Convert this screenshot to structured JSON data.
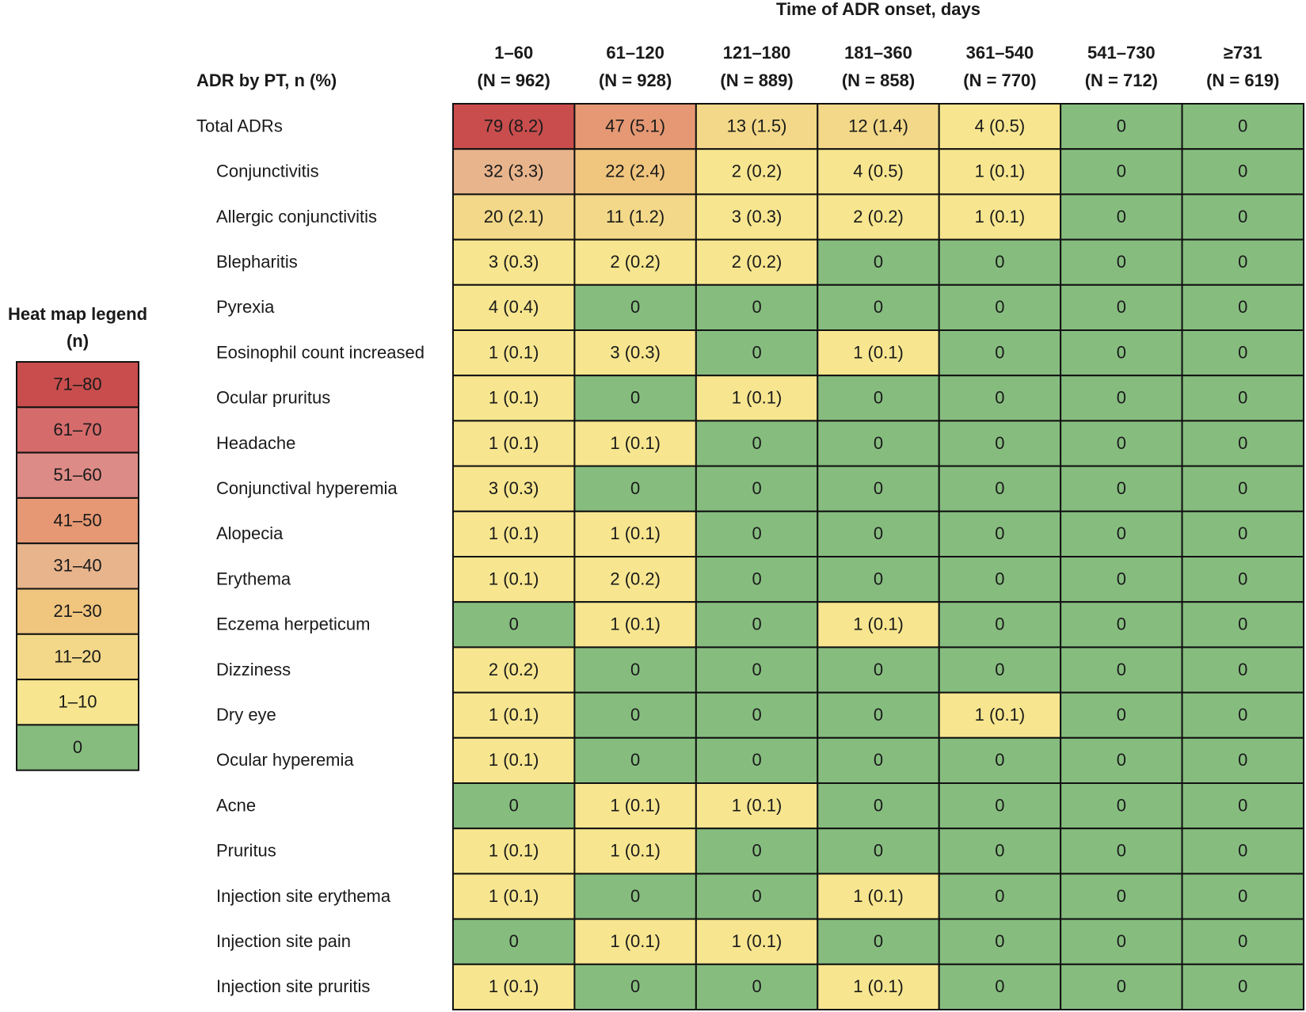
{
  "chart_data": {
    "type": "heatmap",
    "super_header": "Time of ADR onset, days",
    "row_header": "ADR by PT, n (%)",
    "columns": [
      {
        "range": "1–60",
        "n": "(N = 962)"
      },
      {
        "range": "61–120",
        "n": "(N = 928)"
      },
      {
        "range": "121–180",
        "n": "(N = 889)"
      },
      {
        "range": "181–360",
        "n": "(N = 858)"
      },
      {
        "range": "361–540",
        "n": "(N = 770)"
      },
      {
        "range": "541–730",
        "n": "(N = 712)"
      },
      {
        "range": "≥731",
        "n": "(N = 619)"
      }
    ],
    "rows": [
      {
        "label": "Total ADRs",
        "indent": false,
        "counts": [
          79,
          47,
          13,
          12,
          4,
          0,
          0
        ],
        "cells": [
          "79 (8.2)",
          "47 (5.1)",
          "13 (1.5)",
          "12 (1.4)",
          "4 (0.5)",
          "0",
          "0"
        ]
      },
      {
        "label": "Conjunctivitis",
        "indent": true,
        "counts": [
          32,
          22,
          2,
          4,
          1,
          0,
          0
        ],
        "cells": [
          "32 (3.3)",
          "22 (2.4)",
          "2 (0.2)",
          "4 (0.5)",
          "1 (0.1)",
          "0",
          "0"
        ]
      },
      {
        "label": "Allergic conjunctivitis",
        "indent": true,
        "counts": [
          20,
          11,
          3,
          2,
          1,
          0,
          0
        ],
        "cells": [
          "20 (2.1)",
          "11 (1.2)",
          "3 (0.3)",
          "2 (0.2)",
          "1 (0.1)",
          "0",
          "0"
        ]
      },
      {
        "label": "Blepharitis",
        "indent": true,
        "counts": [
          3,
          2,
          2,
          0,
          0,
          0,
          0
        ],
        "cells": [
          "3 (0.3)",
          "2 (0.2)",
          "2 (0.2)",
          "0",
          "0",
          "0",
          "0"
        ]
      },
      {
        "label": "Pyrexia",
        "indent": true,
        "counts": [
          4,
          0,
          0,
          0,
          0,
          0,
          0
        ],
        "cells": [
          "4 (0.4)",
          "0",
          "0",
          "0",
          "0",
          "0",
          "0"
        ]
      },
      {
        "label": "Eosinophil count increased",
        "indent": true,
        "counts": [
          1,
          3,
          0,
          1,
          0,
          0,
          0
        ],
        "cells": [
          "1 (0.1)",
          "3 (0.3)",
          "0",
          "1 (0.1)",
          "0",
          "0",
          "0"
        ]
      },
      {
        "label": "Ocular pruritus",
        "indent": true,
        "counts": [
          1,
          0,
          1,
          0,
          0,
          0,
          0
        ],
        "cells": [
          "1 (0.1)",
          "0",
          "1 (0.1)",
          "0",
          "0",
          "0",
          "0"
        ]
      },
      {
        "label": "Headache",
        "indent": true,
        "counts": [
          1,
          1,
          0,
          0,
          0,
          0,
          0
        ],
        "cells": [
          "1 (0.1)",
          "1 (0.1)",
          "0",
          "0",
          "0",
          "0",
          "0"
        ]
      },
      {
        "label": "Conjunctival hyperemia",
        "indent": true,
        "counts": [
          3,
          0,
          0,
          0,
          0,
          0,
          0
        ],
        "cells": [
          "3 (0.3)",
          "0",
          "0",
          "0",
          "0",
          "0",
          "0"
        ]
      },
      {
        "label": "Alopecia",
        "indent": true,
        "counts": [
          1,
          1,
          0,
          0,
          0,
          0,
          0
        ],
        "cells": [
          "1 (0.1)",
          "1 (0.1)",
          "0",
          "0",
          "0",
          "0",
          "0"
        ]
      },
      {
        "label": "Erythema",
        "indent": true,
        "counts": [
          1,
          2,
          0,
          0,
          0,
          0,
          0
        ],
        "cells": [
          "1 (0.1)",
          "2 (0.2)",
          "0",
          "0",
          "0",
          "0",
          "0"
        ]
      },
      {
        "label": "Eczema herpeticum",
        "indent": true,
        "counts": [
          0,
          1,
          0,
          1,
          0,
          0,
          0
        ],
        "cells": [
          "0",
          "1 (0.1)",
          "0",
          "1 (0.1)",
          "0",
          "0",
          "0"
        ]
      },
      {
        "label": "Dizziness",
        "indent": true,
        "counts": [
          2,
          0,
          0,
          0,
          0,
          0,
          0
        ],
        "cells": [
          "2 (0.2)",
          "0",
          "0",
          "0",
          "0",
          "0",
          "0"
        ]
      },
      {
        "label": "Dry eye",
        "indent": true,
        "counts": [
          1,
          0,
          0,
          0,
          1,
          0,
          0
        ],
        "cells": [
          "1 (0.1)",
          "0",
          "0",
          "0",
          "1 (0.1)",
          "0",
          "0"
        ]
      },
      {
        "label": "Ocular hyperemia",
        "indent": true,
        "counts": [
          1,
          0,
          0,
          0,
          0,
          0,
          0
        ],
        "cells": [
          "1 (0.1)",
          "0",
          "0",
          "0",
          "0",
          "0",
          "0"
        ]
      },
      {
        "label": "Acne",
        "indent": true,
        "counts": [
          0,
          1,
          1,
          0,
          0,
          0,
          0
        ],
        "cells": [
          "0",
          "1 (0.1)",
          "1 (0.1)",
          "0",
          "0",
          "0",
          "0"
        ]
      },
      {
        "label": "Pruritus",
        "indent": true,
        "counts": [
          1,
          1,
          0,
          0,
          0,
          0,
          0
        ],
        "cells": [
          "1 (0.1)",
          "1 (0.1)",
          "0",
          "0",
          "0",
          "0",
          "0"
        ]
      },
      {
        "label": "Injection site erythema",
        "indent": true,
        "counts": [
          1,
          0,
          0,
          1,
          0,
          0,
          0
        ],
        "cells": [
          "1 (0.1)",
          "0",
          "0",
          "1 (0.1)",
          "0",
          "0",
          "0"
        ]
      },
      {
        "label": "Injection site pain",
        "indent": true,
        "counts": [
          0,
          1,
          1,
          0,
          0,
          0,
          0
        ],
        "cells": [
          "0",
          "1 (0.1)",
          "1 (0.1)",
          "0",
          "0",
          "0",
          "0"
        ]
      },
      {
        "label": "Injection site pruritis",
        "indent": true,
        "counts": [
          1,
          0,
          0,
          1,
          0,
          0,
          0
        ],
        "cells": [
          "1 (0.1)",
          "0",
          "0",
          "1 (0.1)",
          "0",
          "0",
          "0"
        ]
      }
    ],
    "legend": {
      "title_line1": "Heat map legend",
      "title_line2": "(n)",
      "bins": [
        {
          "label": "71–80",
          "min": 71,
          "max": 80,
          "color": "#c94d4d"
        },
        {
          "label": "61–70",
          "min": 61,
          "max": 70,
          "color": "#d66b6b"
        },
        {
          "label": "51–60",
          "min": 51,
          "max": 60,
          "color": "#dd8b86"
        },
        {
          "label": "41–50",
          "min": 41,
          "max": 50,
          "color": "#e59873"
        },
        {
          "label": "31–40",
          "min": 31,
          "max": 40,
          "color": "#e8b48c"
        },
        {
          "label": "21–30",
          "min": 21,
          "max": 30,
          "color": "#f0c57e"
        },
        {
          "label": "11–20",
          "min": 11,
          "max": 20,
          "color": "#f2d888"
        },
        {
          "label": "1–10",
          "min": 1,
          "max": 10,
          "color": "#f7e68f"
        },
        {
          "label": "0",
          "min": 0,
          "max": 0,
          "color": "#86bd7f"
        }
      ]
    }
  }
}
